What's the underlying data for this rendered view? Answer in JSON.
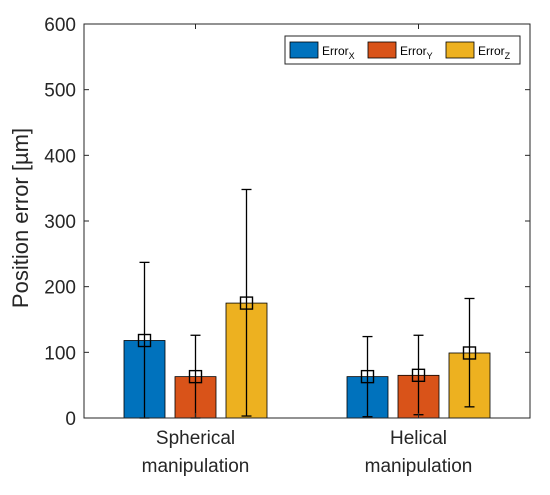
{
  "chart_data": {
    "type": "bar",
    "categories": [
      [
        "Spherical",
        "manipulation"
      ],
      [
        "Helical",
        "manipulation"
      ]
    ],
    "ylabel": "Position error [µm]",
    "ylim": [
      0,
      600
    ],
    "yticks": [
      0,
      100,
      200,
      300,
      400,
      500,
      600
    ],
    "legend_position": "top-right",
    "series": [
      {
        "name": "Error",
        "subscript": "X",
        "color": "#0072BD",
        "values": [
          118,
          63
        ],
        "err_low": [
          0,
          2
        ],
        "err_high": [
          237,
          124
        ]
      },
      {
        "name": "Error",
        "subscript": "Y",
        "color": "#D95319",
        "values": [
          63,
          65
        ],
        "err_low": [
          0,
          5
        ],
        "err_high": [
          126,
          126
        ]
      },
      {
        "name": "Error",
        "subscript": "Z",
        "color": "#EDB120",
        "values": [
          175,
          99
        ],
        "err_low": [
          3,
          17
        ],
        "err_high": [
          348,
          182
        ]
      }
    ]
  }
}
